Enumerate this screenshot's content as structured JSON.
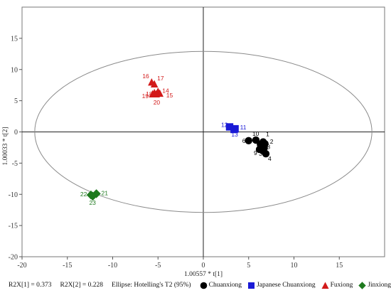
{
  "chart_data": {
    "type": "scatter",
    "xlabel": "1.00557 * t[1]",
    "ylabel": "1.00033 * t[2]",
    "xlim": [
      -20,
      20
    ],
    "ylim": [
      -20,
      20
    ],
    "xticks": [
      -20,
      -15,
      -10,
      -5,
      0,
      5,
      10,
      15
    ],
    "yticks": [
      -20,
      -15,
      -10,
      -5,
      0,
      5,
      10,
      15
    ],
    "ellipse": {
      "center": [
        0,
        0
      ],
      "rx": 18.6,
      "ry": 12.9
    },
    "grid": false,
    "legend_position": "bottom",
    "series": [
      {
        "name": "Chuanxiong",
        "color": "#000000",
        "marker": "circle",
        "points": [
          {
            "label": "1",
            "x": 6.6,
            "y": -1.6
          },
          {
            "label": "2",
            "x": 6.8,
            "y": -1.9
          },
          {
            "label": "3",
            "x": 6.6,
            "y": -3.0
          },
          {
            "label": "4",
            "x": 6.9,
            "y": -3.5
          },
          {
            "label": "5",
            "x": 6.3,
            "y": -2.0
          },
          {
            "label": "6",
            "x": 5.0,
            "y": -1.4
          },
          {
            "label": "7",
            "x": 6.4,
            "y": -2.4
          },
          {
            "label": "8",
            "x": 6.7,
            "y": -2.6
          },
          {
            "label": "9",
            "x": 6.2,
            "y": -2.8
          },
          {
            "label": "10",
            "x": 5.8,
            "y": -1.3
          }
        ]
      },
      {
        "name": "Japanese Chuanxiong",
        "color": "#1a1ad6",
        "marker": "square",
        "points": [
          {
            "label": "11",
            "x": 3.5,
            "y": 0.5
          },
          {
            "label": "12",
            "x": 2.9,
            "y": 0.8
          },
          {
            "label": "13",
            "x": 3.4,
            "y": 0.4
          }
        ]
      },
      {
        "name": "Fuxiong",
        "color": "#d21a1a",
        "marker": "triangle",
        "points": [
          {
            "label": "14",
            "x": -5.0,
            "y": 6.4
          },
          {
            "label": "15",
            "x": -4.8,
            "y": 6.1
          },
          {
            "label": "16",
            "x": -5.7,
            "y": 7.9
          },
          {
            "label": "17",
            "x": -5.4,
            "y": 7.6
          },
          {
            "label": "18",
            "x": -5.4,
            "y": 6.2
          },
          {
            "label": "19",
            "x": -5.6,
            "y": 6.0
          },
          {
            "label": "20",
            "x": -5.2,
            "y": 6.0
          }
        ]
      },
      {
        "name": "Jinxiong",
        "color": "#1f7a1f",
        "marker": "diamond",
        "points": [
          {
            "label": "21",
            "x": -11.8,
            "y": -9.9
          },
          {
            "label": "22",
            "x": -12.4,
            "y": -10.1
          },
          {
            "label": "23",
            "x": -12.2,
            "y": -10.3
          }
        ]
      }
    ]
  },
  "footer": {
    "r2x1": "R2X[1] = 0.373",
    "r2x2": "R2X[2] = 0.228",
    "ellipse_text": "Ellipse: Hotelling's T2 (95%)"
  }
}
